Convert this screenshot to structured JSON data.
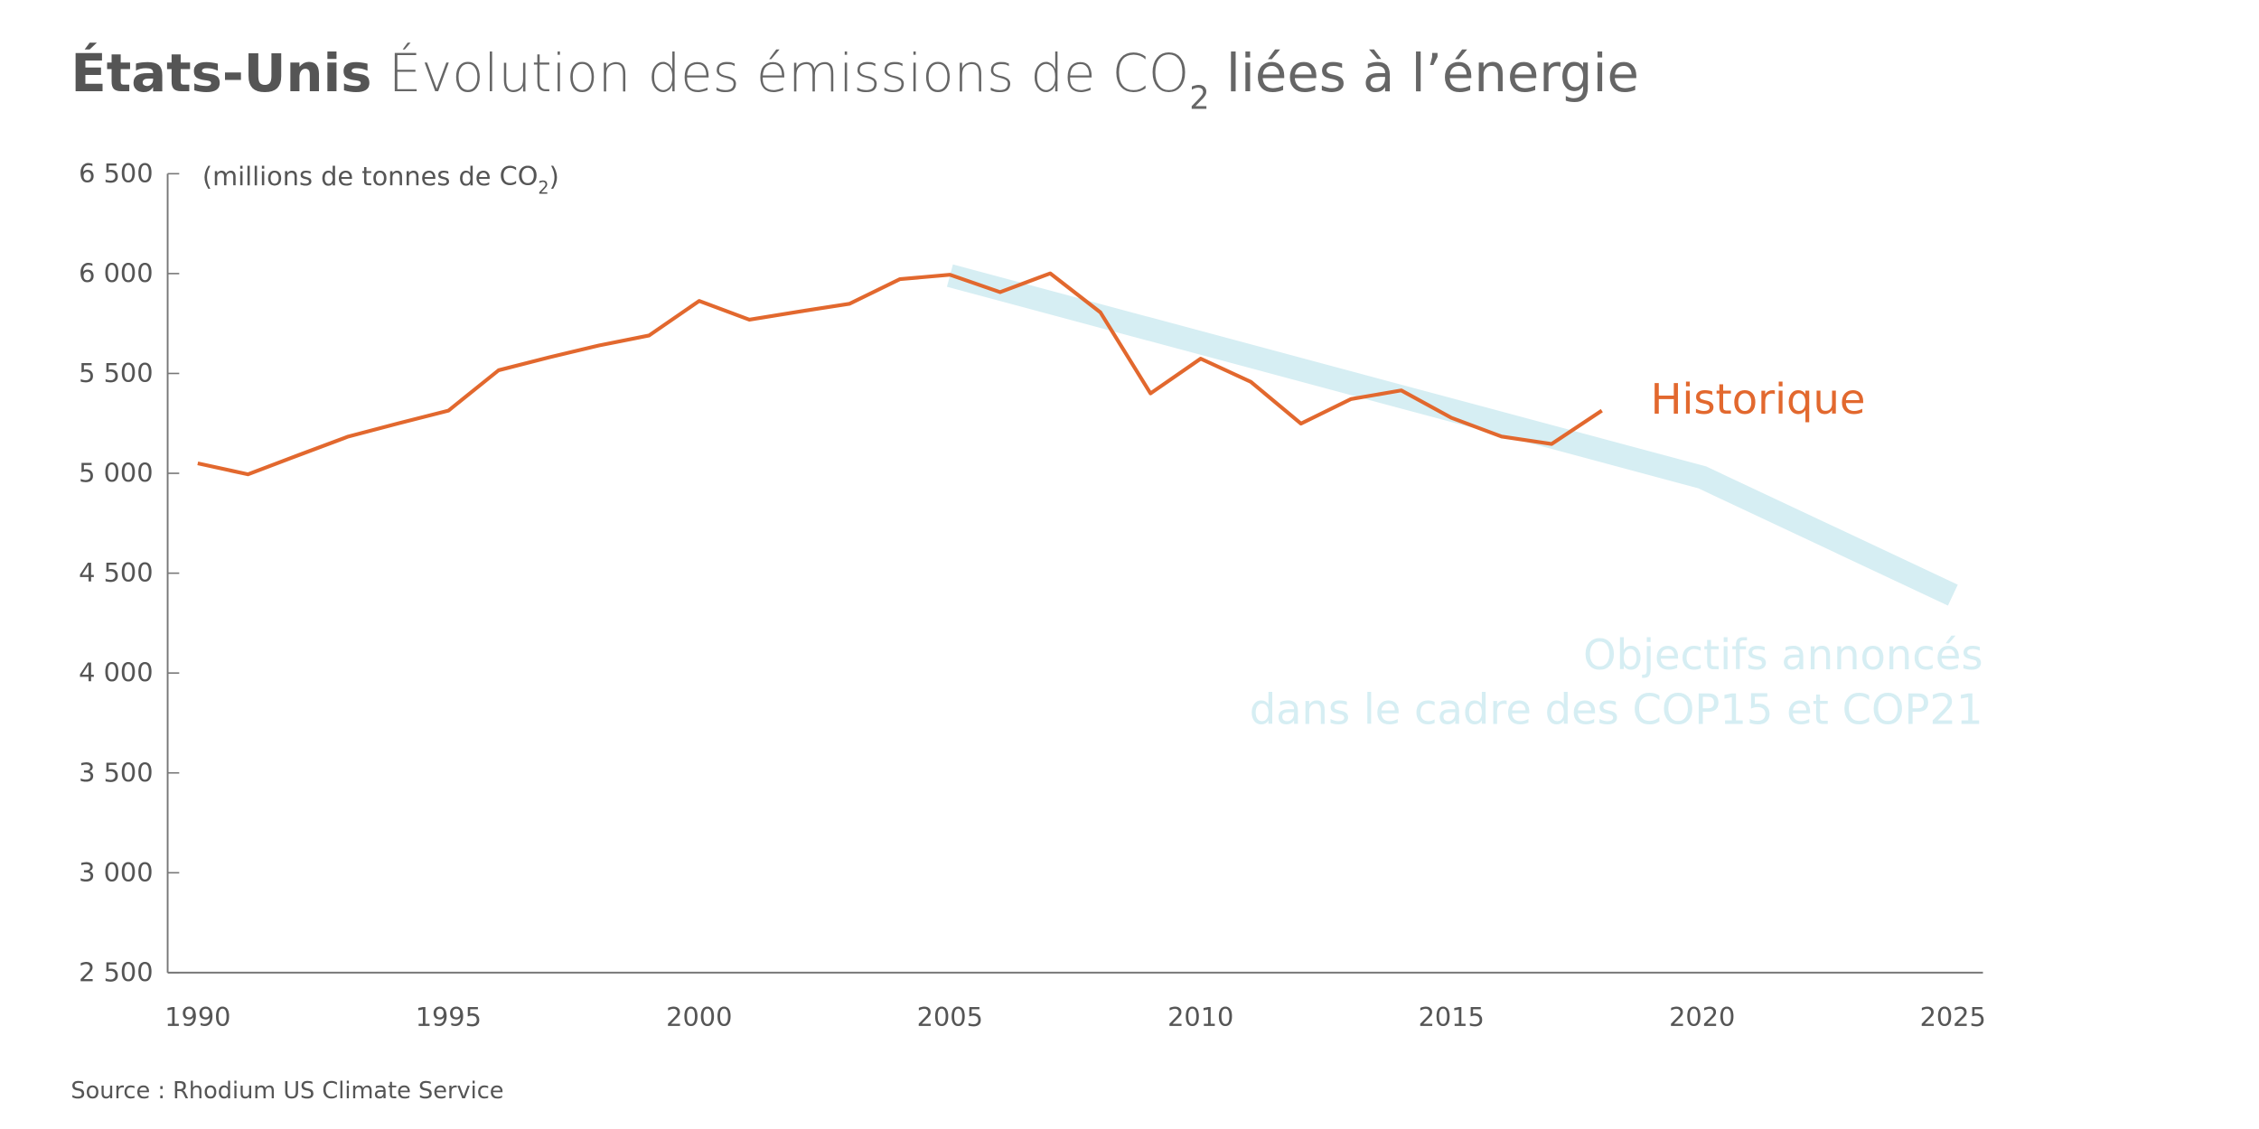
{
  "chart_data": {
    "type": "line",
    "title": {
      "bold": "États-Unis",
      "text": "Évolution des émissions de CO",
      "subscript": "2",
      "text_after": "liées à l’énergie"
    },
    "y_label": {
      "text": "(millions de tonnes de CO",
      "subscript": "2",
      "text_after": ")"
    },
    "source": "Source : Rhodium US Climate Service",
    "xlim": [
      1989.4,
      2025.6
    ],
    "xticks": [
      1990,
      1995,
      2000,
      2005,
      2010,
      2015,
      2020,
      2025
    ],
    "ylim": [
      2500,
      6500
    ],
    "yticks": [
      {
        "value": 2500,
        "label": "2 500"
      },
      {
        "value": 3000,
        "label": "3 000"
      },
      {
        "value": 3500,
        "label": "3 500"
      },
      {
        "value": 4000,
        "label": "4 000"
      },
      {
        "value": 4500,
        "label": "4 500"
      },
      {
        "value": 5000,
        "label": "5 000"
      },
      {
        "value": 5500,
        "label": "5 500"
      },
      {
        "value": 6000,
        "label": "6 000"
      },
      {
        "value": 6500,
        "label": "6 500"
      }
    ],
    "grid": false,
    "series": [
      {
        "name": [
          "Objectifs annoncés",
          "dans le cadre des COP15 et COP21"
        ],
        "color": "#d6eef3",
        "x": [
          2005,
          2020,
          2025
        ],
        "values": [
          5990,
          4980,
          4390
        ]
      },
      {
        "name": [
          "Historique"
        ],
        "color": "#e2682e",
        "x": [
          1990,
          1991,
          1992,
          1993,
          1994,
          1995,
          1996,
          1997,
          1998,
          1999,
          2000,
          2001,
          2002,
          2003,
          2004,
          2005,
          2006,
          2007,
          2008,
          2009,
          2010,
          2011,
          2012,
          2013,
          2014,
          2015,
          2016,
          2017,
          2018
        ],
        "values": [
          5050,
          4995,
          5090,
          5184,
          5250,
          5314,
          5516,
          5580,
          5640,
          5690,
          5863,
          5769,
          5810,
          5849,
          5972,
          5994,
          5907,
          6001,
          5806,
          5400,
          5574,
          5458,
          5249,
          5372,
          5415,
          5278,
          5184,
          5147,
          5314
        ]
      }
    ]
  }
}
